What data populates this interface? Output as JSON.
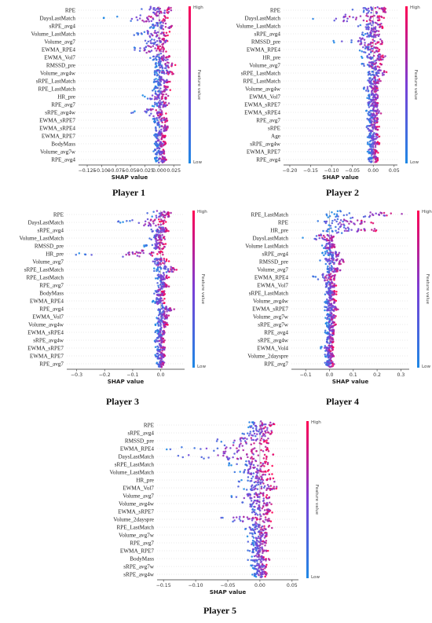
{
  "figure": {
    "common": {
      "xlabel": "SHAP value",
      "colorbar_label": "Feature value",
      "colorbar_high": "High",
      "colorbar_low": "Low",
      "colors": {
        "low": "#1e88e5",
        "mid": "#7a3fd6",
        "high": "#ff0052",
        "zero_line": "#999999",
        "axis": "#333333"
      }
    },
    "panels": [
      {
        "title": "Player 1"
      },
      {
        "title": "Player 2"
      },
      {
        "title": "Player 3"
      },
      {
        "title": "Player 4"
      },
      {
        "title": "Player 5"
      }
    ]
  },
  "chart_data": [
    {
      "type": "scatter",
      "subtype": "shap-beeswarm",
      "title": "Player 1",
      "xlabel": "SHAP value",
      "xlim": [
        -0.14,
        0.037
      ],
      "xticks": [
        -0.125,
        -0.1,
        -0.075,
        -0.05,
        -0.025,
        0.0,
        0.025
      ],
      "xtick_labels": [
        "−0.125",
        "−0.100",
        "−0.075",
        "−0.050",
        "−0.025",
        "0.000",
        "0.025"
      ],
      "features": [
        "RPE",
        "DaysLastMatch",
        "sRPE_avg4",
        "Volume_LastMatch",
        "Volume_avg7",
        "EWMA_RPE4",
        "EWMA_Vol7",
        "RMSSD_pre",
        "Volume_avg4w",
        "sRPE_LastMatch",
        "RPE_LastMatch",
        "HR_pre",
        "RPE_avg7",
        "sRPE_avg4w",
        "EWMA_sRPE7",
        "EWMA_sRPE4",
        "EWMA_RPE7",
        "BodyMass",
        "Volume_avg7w",
        "RPE_avg4"
      ],
      "shap_range": [
        [
          -0.045,
          0.03
        ],
        [
          -0.1,
          0.02
        ],
        [
          -0.02,
          0.028
        ],
        [
          -0.045,
          0.02
        ],
        [
          -0.03,
          0.02
        ],
        [
          -0.065,
          0.015
        ],
        [
          -0.02,
          0.025
        ],
        [
          -0.01,
          0.03
        ],
        [
          -0.01,
          0.025
        ],
        [
          -0.01,
          0.022
        ],
        [
          -0.012,
          0.02
        ],
        [
          -0.03,
          0.018
        ],
        [
          -0.015,
          0.018
        ],
        [
          -0.05,
          0.012
        ],
        [
          -0.012,
          0.015
        ],
        [
          -0.01,
          0.02
        ],
        [
          -0.01,
          0.012
        ],
        [
          -0.01,
          0.012
        ],
        [
          -0.01,
          0.012
        ],
        [
          -0.008,
          0.014
        ]
      ]
    },
    {
      "type": "scatter",
      "subtype": "shap-beeswarm",
      "title": "Player 2",
      "xlabel": "SHAP value",
      "xlim": [
        -0.215,
        0.058
      ],
      "xticks": [
        -0.2,
        -0.15,
        -0.1,
        -0.05,
        0.0,
        0.05
      ],
      "xtick_labels": [
        "−0.20",
        "−0.15",
        "−0.10",
        "−0.05",
        "0.00",
        "0.05"
      ],
      "features": [
        "RPE",
        "DaysLastMatch",
        "Volume_LastMatch",
        "sRPE_avg4",
        "RMSSD_pre",
        "EWMA_RPE4",
        "HR_pre",
        "Volume_avg7",
        "sRPE_LastMatch",
        "RPE_LastMatch",
        "Volume_avg4w",
        "EWMA_Vol7",
        "EWMA_sRPE7",
        "EWMA_sRPE4",
        "RPE_avg7",
        "sRPE",
        "Age",
        "sRPE_avg4w",
        "EWMA_RPE7",
        "RPE_avg4"
      ],
      "shap_range": [
        [
          -0.055,
          0.04
        ],
        [
          -0.2,
          0.035
        ],
        [
          -0.04,
          0.03
        ],
        [
          -0.03,
          0.025
        ],
        [
          -0.1,
          0.03
        ],
        [
          -0.04,
          0.02
        ],
        [
          -0.03,
          0.035
        ],
        [
          -0.03,
          0.02
        ],
        [
          -0.02,
          0.04
        ],
        [
          -0.02,
          0.02
        ],
        [
          -0.025,
          0.015
        ],
        [
          -0.015,
          0.015
        ],
        [
          -0.02,
          0.015
        ],
        [
          -0.02,
          0.02
        ],
        [
          -0.015,
          0.015
        ],
        [
          -0.02,
          0.015
        ],
        [
          -0.015,
          0.015
        ],
        [
          -0.015,
          0.015
        ],
        [
          -0.015,
          0.012
        ],
        [
          -0.012,
          0.012
        ]
      ]
    },
    {
      "type": "scatter",
      "subtype": "shap-beeswarm",
      "title": "Player 3",
      "xlabel": "SHAP value",
      "xlim": [
        -0.335,
        0.085
      ],
      "xticks": [
        -0.3,
        -0.2,
        -0.1,
        0.0
      ],
      "xtick_labels": [
        "−0.3",
        "−0.2",
        "−0.1",
        "0.0"
      ],
      "features": [
        "RPE",
        "DaysLastMatch",
        "sRPE_avg4",
        "Volume_LastMatch",
        "RMSSD_pre",
        "HR_pre",
        "Volume_avg7",
        "sRPE_LastMatch",
        "RPE_LastMatch",
        "RPE_avg7",
        "BodyMass",
        "EWMA_RPE4",
        "RPE_avg4",
        "EWMA_Vol7",
        "Volume_avg4w",
        "EWMA_sRPE4",
        "sRPE_avg4w",
        "EWMA_sRPE7",
        "EWMA_RPE7",
        "RPE_avg7"
      ],
      "shap_range": [
        [
          -0.05,
          0.04
        ],
        [
          -0.16,
          0.02
        ],
        [
          -0.04,
          0.03
        ],
        [
          -0.05,
          0.02
        ],
        [
          -0.06,
          0.02
        ],
        [
          -0.32,
          0.02
        ],
        [
          -0.05,
          0.03
        ],
        [
          -0.03,
          0.075
        ],
        [
          -0.02,
          0.03
        ],
        [
          -0.02,
          0.03
        ],
        [
          -0.03,
          0.015
        ],
        [
          -0.03,
          0.02
        ],
        [
          -0.02,
          0.05
        ],
        [
          -0.02,
          0.03
        ],
        [
          -0.02,
          0.025
        ],
        [
          -0.02,
          0.02
        ],
        [
          -0.025,
          0.015
        ],
        [
          -0.02,
          0.02
        ],
        [
          -0.02,
          0.015
        ],
        [
          -0.015,
          0.015
        ]
      ]
    },
    {
      "type": "scatter",
      "subtype": "shap-beeswarm",
      "title": "Player 4",
      "xlabel": "SHAP value",
      "xlim": [
        -0.16,
        0.335
      ],
      "xticks": [
        -0.1,
        0.0,
        0.1,
        0.2,
        0.3
      ],
      "xtick_labels": [
        "−0.1",
        "0.0",
        "0.1",
        "0.2",
        "0.3"
      ],
      "features": [
        "RPE_LastMatch",
        "RPE",
        "HR_pre",
        "DaysLastMatch",
        "Volume LastMatch",
        "sRPE_avg4",
        "RMSSD_pre",
        "Volume_avg7",
        "EWMA_RPE4",
        "EWMA_Vol7",
        "sRPE_LastMatch",
        "Volume_avg4w",
        "EWMA_sRPE7",
        "Volume_avg7w",
        "sRPE_avg7w",
        "RPE_avg4",
        "sRPE_avg4w",
        "EWMA_Vol4",
        "Volume_2dayspre",
        "RPE_avg7"
      ],
      "shap_range": [
        [
          -0.02,
          0.32
        ],
        [
          -0.07,
          0.2
        ],
        [
          -0.03,
          0.22
        ],
        [
          -0.13,
          0.03
        ],
        [
          -0.04,
          0.03
        ],
        [
          -0.03,
          0.06
        ],
        [
          -0.04,
          0.08
        ],
        [
          -0.02,
          0.05
        ],
        [
          -0.07,
          0.03
        ],
        [
          -0.03,
          0.03
        ],
        [
          -0.02,
          0.03
        ],
        [
          -0.02,
          0.03
        ],
        [
          -0.02,
          0.04
        ],
        [
          -0.02,
          0.03
        ],
        [
          -0.02,
          0.03
        ],
        [
          -0.02,
          0.03
        ],
        [
          -0.02,
          0.02
        ],
        [
          -0.04,
          0.02
        ],
        [
          -0.02,
          0.02
        ],
        [
          -0.02,
          0.02
        ]
      ]
    },
    {
      "type": "scatter",
      "subtype": "shap-beeswarm",
      "title": "Player 5",
      "xlabel": "SHAP value",
      "xlim": [
        -0.16,
        0.06
      ],
      "xticks": [
        -0.15,
        -0.1,
        -0.05,
        0.0,
        0.05
      ],
      "xtick_labels": [
        "−0.15",
        "−0.10",
        "−0.05",
        "0.00",
        "0.05"
      ],
      "features": [
        "RPE",
        "sRPE_avg4",
        "RMSSD_pre",
        "EWMA_RPE4",
        "DaysLastMatch",
        "sRPE_LastMatch",
        "Volume_LastMatch",
        "HR_pre",
        "EWMA_Vol7",
        "Volume_avg7",
        "Volume_avg4w",
        "EWMA_sRPE7",
        "Volume_2dayspre",
        "RPE_LastMatch",
        "Volume_avg7w",
        "RPE_avg7",
        "EWMA_RPE7",
        "BodyMass",
        "sRPE_avg7w",
        "sRPE_avg4w"
      ],
      "shap_range": [
        [
          -0.03,
          0.025
        ],
        [
          -0.03,
          0.025
        ],
        [
          -0.08,
          0.02
        ],
        [
          -0.15,
          0.025
        ],
        [
          -0.15,
          0.03
        ],
        [
          -0.05,
          0.02
        ],
        [
          -0.04,
          0.02
        ],
        [
          -0.04,
          0.025
        ],
        [
          -0.035,
          0.03
        ],
        [
          -0.05,
          0.02
        ],
        [
          -0.03,
          0.02
        ],
        [
          -0.02,
          0.02
        ],
        [
          -0.09,
          0.02
        ],
        [
          -0.03,
          0.02
        ],
        [
          -0.02,
          0.015
        ],
        [
          -0.02,
          0.015
        ],
        [
          -0.02,
          0.015
        ],
        [
          -0.02,
          0.015
        ],
        [
          -0.015,
          0.015
        ],
        [
          -0.012,
          0.012
        ]
      ]
    }
  ]
}
